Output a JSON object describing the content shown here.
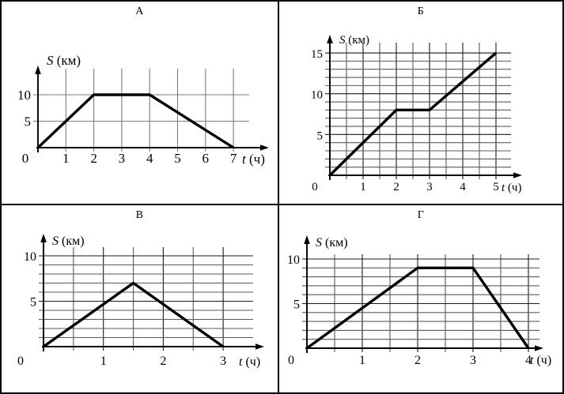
{
  "page": {
    "background": "#ffffff",
    "frame_color": "#000000",
    "line_color": "#000000"
  },
  "chart_data": [
    {
      "panel": "А",
      "type": "line",
      "title": "А",
      "xlabel": "t (ч)",
      "ylabel": "S (км)",
      "x_ticks": [
        0,
        1,
        2,
        3,
        4,
        5,
        6,
        7
      ],
      "y_ticks": [
        5,
        10
      ],
      "grid_x_step": 1,
      "grid_y_step": 5,
      "xlim": [
        0,
        7
      ],
      "ylim": [
        0,
        10
      ],
      "points": [
        [
          0,
          0
        ],
        [
          2,
          10
        ],
        [
          4,
          10
        ],
        [
          7,
          0
        ]
      ],
      "grid_color": "#7b7b7b",
      "grid_major_color": "#7b7b7b",
      "line_color": "#000000",
      "legend": false
    },
    {
      "panel": "Б",
      "type": "line",
      "title": "Б",
      "xlabel": "t (ч)",
      "ylabel": "S (км)",
      "x_ticks": [
        0,
        1,
        2,
        3,
        4,
        5
      ],
      "y_ticks": [
        5,
        10,
        15
      ],
      "grid_x_step": 0.5,
      "grid_y_step": 1,
      "xlim": [
        0,
        5
      ],
      "ylim": [
        0,
        15
      ],
      "points": [
        [
          0,
          0
        ],
        [
          2,
          8
        ],
        [
          3,
          8
        ],
        [
          5,
          15
        ]
      ],
      "grid_color": "#5a5a5a",
      "grid_major_color": "#1a1a1a",
      "line_color": "#000000",
      "legend": false
    },
    {
      "panel": "В",
      "type": "line",
      "title": "В",
      "xlabel": "t (ч)",
      "ylabel": "S (км)",
      "x_ticks": [
        0,
        1,
        2,
        3
      ],
      "y_ticks": [
        5,
        10
      ],
      "grid_x_step": 0.5,
      "grid_y_step": 1,
      "xlim": [
        0,
        3
      ],
      "ylim": [
        0,
        10
      ],
      "points": [
        [
          0,
          0
        ],
        [
          1.5,
          7
        ],
        [
          3,
          0
        ]
      ],
      "grid_color": "#5a5a5a",
      "grid_major_color": "#1a1a1a",
      "line_color": "#000000",
      "legend": false
    },
    {
      "panel": "Г",
      "type": "line",
      "title": "Г",
      "xlabel": "t (ч)",
      "ylabel": "S (км)",
      "x_ticks": [
        0,
        1,
        2,
        3,
        4
      ],
      "y_ticks": [
        5,
        10
      ],
      "grid_x_step": 0.5,
      "grid_y_step": 1,
      "xlim": [
        0,
        4
      ],
      "ylim": [
        0,
        10
      ],
      "points": [
        [
          0,
          0
        ],
        [
          2,
          9
        ],
        [
          3,
          9
        ],
        [
          4,
          0
        ]
      ],
      "grid_color": "#5a5a5a",
      "grid_major_color": "#1a1a1a",
      "line_color": "#000000",
      "legend": false
    }
  ]
}
